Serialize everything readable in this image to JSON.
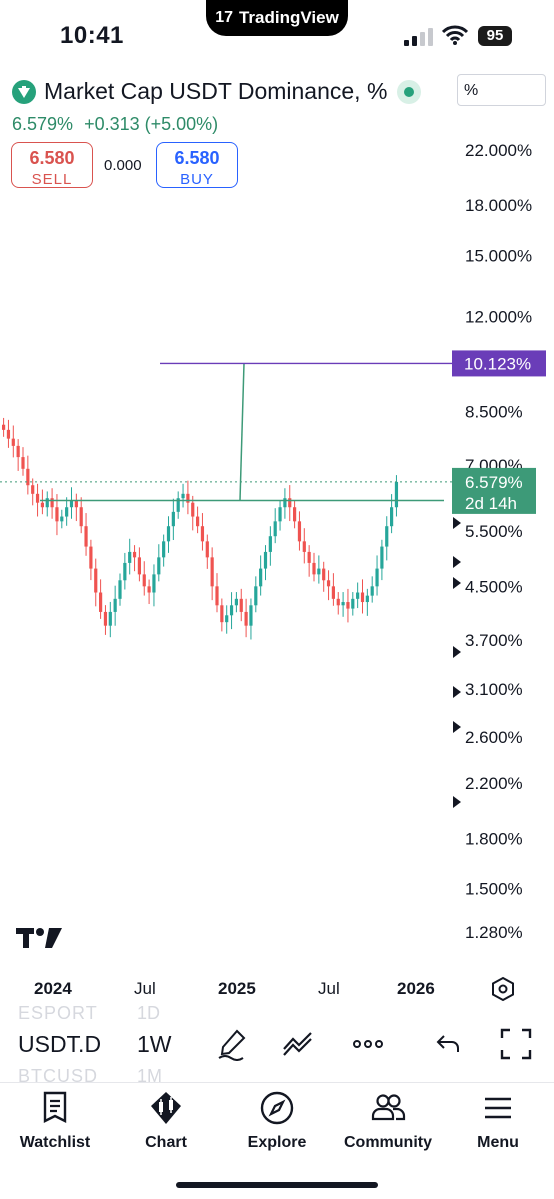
{
  "status": {
    "time": "10:41",
    "app": "TradingView",
    "battery": "95"
  },
  "header": {
    "title": "Market Cap USDT Dominance, %",
    "price": "6.579%",
    "change": "+0.313 (+5.00%)",
    "scale": "%",
    "sell": {
      "price": "6.580",
      "label": "SELL"
    },
    "buy": {
      "price": "6.580",
      "label": "BUY"
    },
    "spread": "0.000"
  },
  "chart_data": {
    "type": "candlestick",
    "y_scale": "log",
    "y_ticks": [
      "22.000%",
      "18.000%",
      "15.000%",
      "12.000%",
      "8.500%",
      "7.000%",
      "5.500%",
      "4.500%",
      "3.700%",
      "3.100%",
      "2.600%",
      "2.200%",
      "1.800%",
      "1.500%",
      "1.280%"
    ],
    "y_tick_values": [
      22,
      18,
      15,
      12,
      8.5,
      7,
      5.5,
      4.5,
      3.7,
      3.1,
      2.6,
      2.2,
      1.8,
      1.5,
      1.28
    ],
    "x_ticks": [
      "2024",
      "Jul",
      "2025",
      "Jul",
      "2026"
    ],
    "current_label": {
      "value": "6.579%",
      "countdown": "2d 14h"
    },
    "target_label": "10.123%",
    "neckline_value": 6.15,
    "target_value": 10.123,
    "closes": [
      7.95,
      7.7,
      7.5,
      7.2,
      6.9,
      6.5,
      6.3,
      6.1,
      6.0,
      6.2,
      6.0,
      5.7,
      5.8,
      6.0,
      6.15,
      6.0,
      5.6,
      5.2,
      4.8,
      4.4,
      4.1,
      3.9,
      4.1,
      4.3,
      4.6,
      4.9,
      5.1,
      5.0,
      4.7,
      4.5,
      4.4,
      4.7,
      5.0,
      5.3,
      5.6,
      5.9,
      6.2,
      6.3,
      6.1,
      5.8,
      5.6,
      5.3,
      5.0,
      4.5,
      4.2,
      3.95,
      4.05,
      4.2,
      4.3,
      4.1,
      3.9,
      4.2,
      4.5,
      4.8,
      5.1,
      5.4,
      5.7,
      6.0,
      6.2,
      6.0,
      5.7,
      5.3,
      5.1,
      4.9,
      4.7,
      4.8,
      4.6,
      4.5,
      4.3,
      4.2,
      4.25,
      4.15,
      4.3,
      4.4,
      4.25,
      4.35,
      4.5,
      4.8,
      5.2,
      5.6,
      6.0,
      6.579
    ],
    "neckline": true,
    "target_marker": true
  },
  "toolbar": {
    "ghost_above_ticker": "ESPORT",
    "ghost_above_interval": "1D",
    "ticker": "USDT.D",
    "interval": "1W",
    "ghost_below_ticker": "BTCUSD",
    "ghost_below_interval": "1M"
  },
  "tabs": [
    {
      "label": "Watchlist",
      "icon": "watchlist-icon"
    },
    {
      "label": "Chart",
      "icon": "chart-icon"
    },
    {
      "label": "Explore",
      "icon": "compass-icon"
    },
    {
      "label": "Community",
      "icon": "community-icon"
    },
    {
      "label": "Menu",
      "icon": "menu-icon"
    }
  ],
  "colors": {
    "up": "#26a69a",
    "down": "#ef5350",
    "accent_green": "#2e8b68",
    "target": "#6a3db8",
    "buy": "#2962ff",
    "sell": "#d9534f"
  }
}
